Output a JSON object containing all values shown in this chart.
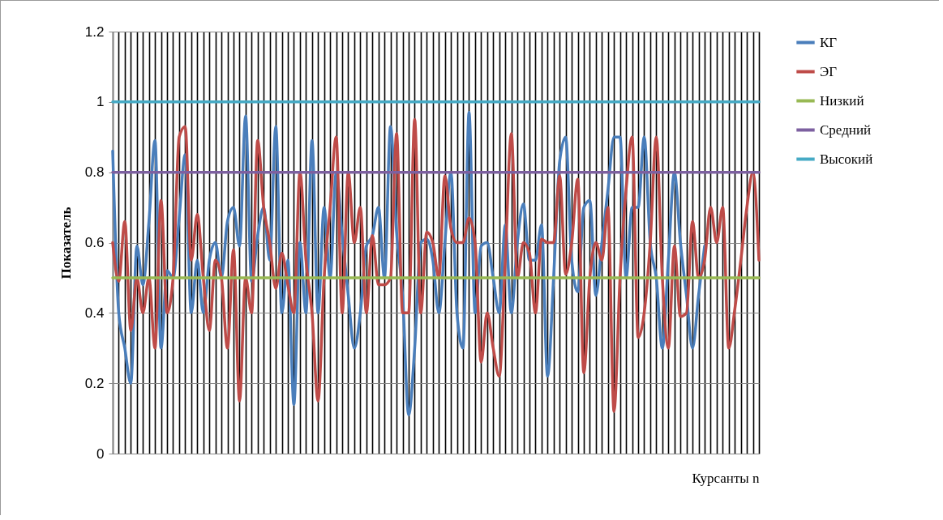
{
  "chart_data": {
    "type": "line",
    "xlabel": "Курсанты n",
    "ylabel": "Показатель",
    "categories": [
      null,
      null,
      null,
      null,
      null,
      null,
      null,
      null,
      null,
      null,
      null,
      null,
      null,
      null,
      null,
      null,
      null,
      null,
      null,
      null,
      null,
      null,
      null,
      null,
      null,
      null,
      null,
      null,
      null,
      null,
      null,
      null,
      null,
      null,
      null,
      null,
      null,
      null,
      null,
      null,
      null,
      null,
      null,
      null,
      null,
      null,
      null,
      null,
      null,
      null,
      null,
      null,
      null,
      null,
      null,
      null,
      null,
      null,
      null,
      null,
      null,
      null,
      null,
      null,
      null,
      null,
      null,
      null,
      null,
      null,
      null,
      null,
      null,
      null,
      null,
      null,
      null,
      null,
      null,
      null,
      null,
      null,
      null,
      null,
      null,
      null,
      null,
      null,
      null,
      null,
      null,
      null,
      null,
      null,
      null,
      null,
      null,
      null,
      null,
      null,
      null,
      null,
      null,
      null,
      null,
      null,
      null,
      null
    ],
    "series": [
      {
        "name": "КГ",
        "color": "#4a7ebb",
        "values": [
          0.86,
          0.4,
          0.3,
          0.2,
          0.59,
          0.48,
          0.66,
          0.89,
          0.3,
          0.52,
          0.5,
          0.67,
          0.85,
          0.4,
          0.55,
          0.4,
          0.55,
          0.6,
          0.5,
          0.66,
          0.7,
          0.59,
          0.96,
          0.49,
          0.62,
          0.7,
          0.55,
          0.93,
          0.4,
          0.55,
          0.14,
          0.6,
          0.4,
          0.89,
          0.4,
          0.7,
          0.5,
          0.8,
          0.62,
          0.45,
          0.3,
          0.4,
          0.59,
          0.62,
          0.7,
          0.5,
          0.93,
          0.63,
          0.45,
          0.11,
          0.3,
          0.6,
          0.61,
          0.55,
          0.4,
          0.6,
          0.8,
          0.4,
          0.3,
          0.97,
          0.4,
          0.59,
          0.6,
          0.5,
          0.4,
          0.65,
          0.4,
          0.6,
          0.71,
          0.55,
          0.55,
          0.65,
          0.22,
          0.5,
          0.83,
          0.9,
          0.55,
          0.46,
          0.7,
          0.72,
          0.45,
          0.6,
          0.75,
          0.9,
          0.9,
          0.5,
          0.7,
          0.7,
          0.9,
          0.6,
          0.5,
          0.3,
          0.55,
          0.8,
          0.6,
          0.45,
          0.3,
          0.45,
          0.59,
          null,
          null,
          null,
          null,
          null,
          null,
          null,
          null,
          null
        ]
      },
      {
        "name": "ЭГ",
        "color": "#be4b48",
        "values": [
          0.6,
          0.49,
          0.66,
          0.35,
          0.5,
          0.4,
          0.5,
          0.3,
          0.72,
          0.4,
          0.5,
          0.9,
          0.93,
          0.55,
          0.68,
          0.5,
          0.35,
          0.55,
          0.5,
          0.3,
          0.58,
          0.15,
          0.5,
          0.4,
          0.89,
          0.7,
          0.6,
          0.47,
          0.57,
          0.48,
          0.4,
          0.8,
          0.55,
          0.4,
          0.15,
          0.5,
          0.7,
          0.9,
          0.4,
          0.8,
          0.6,
          0.7,
          0.4,
          0.62,
          0.48,
          0.48,
          0.5,
          0.91,
          0.4,
          0.4,
          0.95,
          0.4,
          0.63,
          0.6,
          0.5,
          0.79,
          0.64,
          0.6,
          0.6,
          0.67,
          0.6,
          0.26,
          0.4,
          0.3,
          0.22,
          0.55,
          0.91,
          0.5,
          0.6,
          0.57,
          0.4,
          0.61,
          0.6,
          0.6,
          0.79,
          0.51,
          0.6,
          0.78,
          0.23,
          0.5,
          0.6,
          0.55,
          0.7,
          0.12,
          0.5,
          0.75,
          0.9,
          0.33,
          0.4,
          0.6,
          0.9,
          0.5,
          0.3,
          0.59,
          0.39,
          0.4,
          0.66,
          0.5,
          0.55,
          0.7,
          0.6,
          0.7,
          0.3,
          0.41,
          0.55,
          0.7,
          0.8,
          0.55
        ]
      },
      {
        "name": "Низкий",
        "color": "#98b954",
        "values": [
          0.5,
          0.5,
          0.5,
          0.5,
          0.5,
          0.5,
          0.5,
          0.5,
          0.5,
          0.5,
          0.5,
          0.5,
          0.5,
          0.5,
          0.5,
          0.5,
          0.5,
          0.5,
          0.5,
          0.5,
          0.5,
          0.5,
          0.5,
          0.5,
          0.5,
          0.5,
          0.5,
          0.5,
          0.5,
          0.5,
          0.5,
          0.5,
          0.5,
          0.5,
          0.5,
          0.5,
          0.5,
          0.5,
          0.5,
          0.5,
          0.5,
          0.5,
          0.5,
          0.5,
          0.5,
          0.5,
          0.5,
          0.5,
          0.5,
          0.5,
          0.5,
          0.5,
          0.5,
          0.5,
          0.5,
          0.5,
          0.5,
          0.5,
          0.5,
          0.5,
          0.5,
          0.5,
          0.5,
          0.5,
          0.5,
          0.5,
          0.5,
          0.5,
          0.5,
          0.5,
          0.5,
          0.5,
          0.5,
          0.5,
          0.5,
          0.5,
          0.5,
          0.5,
          0.5,
          0.5,
          0.5,
          0.5,
          0.5,
          0.5,
          0.5,
          0.5,
          0.5,
          0.5,
          0.5,
          0.5,
          0.5,
          0.5,
          0.5,
          0.5,
          0.5,
          0.5,
          0.5,
          0.5,
          0.5,
          0.5,
          0.5,
          0.5,
          0.5,
          0.5,
          0.5,
          0.5,
          0.5,
          0.5
        ]
      },
      {
        "name": "Средний",
        "color": "#7d60a0",
        "values": [
          0.8,
          0.8,
          0.8,
          0.8,
          0.8,
          0.8,
          0.8,
          0.8,
          0.8,
          0.8,
          0.8,
          0.8,
          0.8,
          0.8,
          0.8,
          0.8,
          0.8,
          0.8,
          0.8,
          0.8,
          0.8,
          0.8,
          0.8,
          0.8,
          0.8,
          0.8,
          0.8,
          0.8,
          0.8,
          0.8,
          0.8,
          0.8,
          0.8,
          0.8,
          0.8,
          0.8,
          0.8,
          0.8,
          0.8,
          0.8,
          0.8,
          0.8,
          0.8,
          0.8,
          0.8,
          0.8,
          0.8,
          0.8,
          0.8,
          0.8,
          0.8,
          0.8,
          0.8,
          0.8,
          0.8,
          0.8,
          0.8,
          0.8,
          0.8,
          0.8,
          0.8,
          0.8,
          0.8,
          0.8,
          0.8,
          0.8,
          0.8,
          0.8,
          0.8,
          0.8,
          0.8,
          0.8,
          0.8,
          0.8,
          0.8,
          0.8,
          0.8,
          0.8,
          0.8,
          0.8,
          0.8,
          0.8,
          0.8,
          0.8,
          0.8,
          0.8,
          0.8,
          0.8,
          0.8,
          0.8,
          0.8,
          0.8,
          0.8,
          0.8,
          0.8,
          0.8,
          0.8,
          0.8,
          0.8,
          0.8,
          0.8,
          0.8,
          0.8,
          0.8,
          0.8,
          0.8,
          0.8,
          0.8
        ]
      },
      {
        "name": "Высокий",
        "color": "#46aac5",
        "values": [
          1,
          1,
          1,
          1,
          1,
          1,
          1,
          1,
          1,
          1,
          1,
          1,
          1,
          1,
          1,
          1,
          1,
          1,
          1,
          1,
          1,
          1,
          1,
          1,
          1,
          1,
          1,
          1,
          1,
          1,
          1,
          1,
          1,
          1,
          1,
          1,
          1,
          1,
          1,
          1,
          1,
          1,
          1,
          1,
          1,
          1,
          1,
          1,
          1,
          1,
          1,
          1,
          1,
          1,
          1,
          1,
          1,
          1,
          1,
          1,
          1,
          1,
          1,
          1,
          1,
          1,
          1,
          1,
          1,
          1,
          1,
          1,
          1,
          1,
          1,
          1,
          1,
          1,
          1,
          1,
          1,
          1,
          1,
          1,
          1,
          1,
          1,
          1,
          1,
          1,
          1,
          1,
          1,
          1,
          1,
          1,
          1,
          1,
          1,
          1,
          1,
          1,
          1,
          1,
          1,
          1,
          1,
          1
        ]
      }
    ],
    "ylim": [
      0,
      1.2
    ],
    "yticks": [
      0,
      0.2,
      0.4,
      0.6,
      0.8,
      1,
      1.2
    ],
    "grid": true,
    "legend": "right",
    "tick_labels": "y",
    "marker": "none",
    "line_style": "solid"
  }
}
